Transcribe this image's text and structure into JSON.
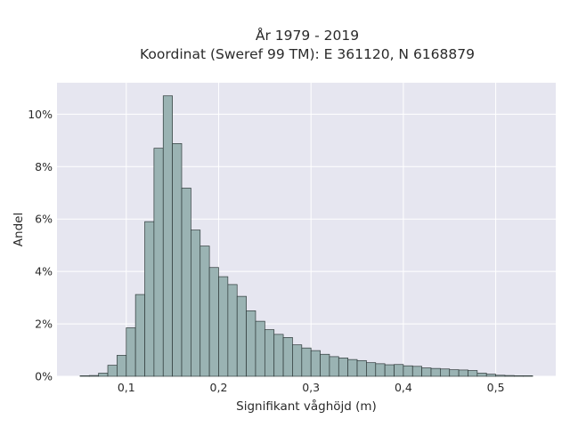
{
  "chart_data": {
    "type": "bar",
    "title": "År 1979 - 2019",
    "subtitle": "Koordinat (Sweref 99 TM): E 361120, N 6168879",
    "xlabel": "Signifikant våghöjd (m)",
    "ylabel": "Andel",
    "xlim": [
      0.025,
      0.565
    ],
    "ylim": [
      0,
      11.2
    ],
    "x_ticks": [
      0.1,
      0.2,
      0.3,
      0.4,
      0.5
    ],
    "x_tick_labels": [
      "0,1",
      "0,2",
      "0,3",
      "0,4",
      "0,5"
    ],
    "y_ticks": [
      0,
      2,
      4,
      6,
      8,
      10
    ],
    "y_tick_labels": [
      "0%",
      "2%",
      "4%",
      "6%",
      "8%",
      "10%"
    ],
    "grid": true,
    "legend": false,
    "bin_start": 0.05,
    "bin_width": 0.01,
    "values": [
      0.02,
      0.03,
      0.12,
      0.42,
      0.8,
      1.85,
      3.12,
      5.9,
      8.7,
      10.7,
      8.88,
      7.18,
      5.58,
      4.97,
      4.15,
      3.8,
      3.5,
      3.05,
      2.5,
      2.1,
      1.78,
      1.6,
      1.48,
      1.2,
      1.08,
      0.98,
      0.84,
      0.75,
      0.7,
      0.64,
      0.6,
      0.52,
      0.48,
      0.44,
      0.45,
      0.4,
      0.38,
      0.32,
      0.3,
      0.28,
      0.25,
      0.24,
      0.22,
      0.12,
      0.08,
      0.04,
      0.03,
      0.02,
      0.02
    ],
    "colors": {
      "plot_background": "#e6e6f0",
      "grid": "#ffffff",
      "bar_fill": "#9ab3b3",
      "bar_stroke": "#2f3a3a"
    }
  }
}
